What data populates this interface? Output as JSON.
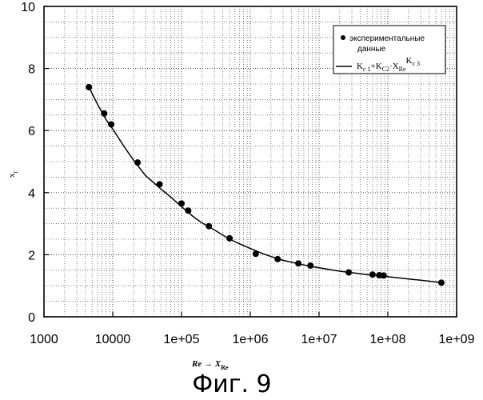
{
  "chart_data": {
    "type": "scatter",
    "x_scale": "log",
    "xlim": [
      1000,
      1000000000
    ],
    "ylim": [
      0,
      10
    ],
    "x_ticks": [
      1000,
      10000,
      100000,
      1000000,
      10000000,
      100000000,
      1000000000
    ],
    "x_tick_labels": [
      "1000",
      "10000",
      "1e+05",
      "1e+06",
      "1e+07",
      "1e+08",
      "1e+09"
    ],
    "y_ticks": [
      0,
      2,
      4,
      6,
      8,
      10
    ],
    "y_tick_labels": [
      "0",
      "2",
      "4",
      "6",
      "8",
      "10"
    ],
    "grid": "dotted, major and minor",
    "xlabel": {
      "base": "Re → X",
      "sub": "Re"
    },
    "ylabel": {
      "base": "x",
      "sub": "r"
    },
    "legend": {
      "placement": "top-right",
      "scatter_label_line1": "экспериментальные",
      "scatter_label_line2": "данные",
      "fit_label": {
        "k": "K",
        "c1": "c 1",
        "c2": "C2",
        "x": "X",
        "re": "Re",
        "c3": "c 3"
      }
    },
    "series": [
      {
        "name": "экспериментальные данные",
        "kind": "scatter",
        "x": [
          4500,
          7500,
          9500,
          23000,
          48000,
          100000,
          125000,
          250000,
          500000,
          1200000,
          2500000,
          5000000,
          7500000,
          27000000,
          60000000,
          75000000,
          87000000,
          600000000
        ],
        "y": [
          7.4,
          6.55,
          6.2,
          4.97,
          4.27,
          3.65,
          3.42,
          2.92,
          2.53,
          2.03,
          1.86,
          1.72,
          1.65,
          1.43,
          1.36,
          1.34,
          1.33,
          1.1
        ]
      },
      {
        "kind": "line",
        "x": [
          4500,
          6000,
          8000,
          10000,
          15000,
          20000,
          30000,
          50000,
          70000,
          100000,
          150000,
          200000,
          300000,
          500000,
          700000,
          1000000,
          1500000,
          2000000,
          3000000,
          5000000,
          7000000,
          10000000,
          20000000,
          30000000,
          50000000,
          70000000,
          100000000,
          200000000,
          300000000,
          600000000
        ],
        "y": [
          7.4,
          6.85,
          6.35,
          6.05,
          5.45,
          5.05,
          4.55,
          4.12,
          3.85,
          3.55,
          3.22,
          3.02,
          2.8,
          2.5,
          2.35,
          2.2,
          2.04,
          1.94,
          1.82,
          1.71,
          1.64,
          1.58,
          1.47,
          1.42,
          1.36,
          1.33,
          1.29,
          1.22,
          1.18,
          1.1
        ]
      }
    ]
  },
  "caption": "Фиг. 9"
}
